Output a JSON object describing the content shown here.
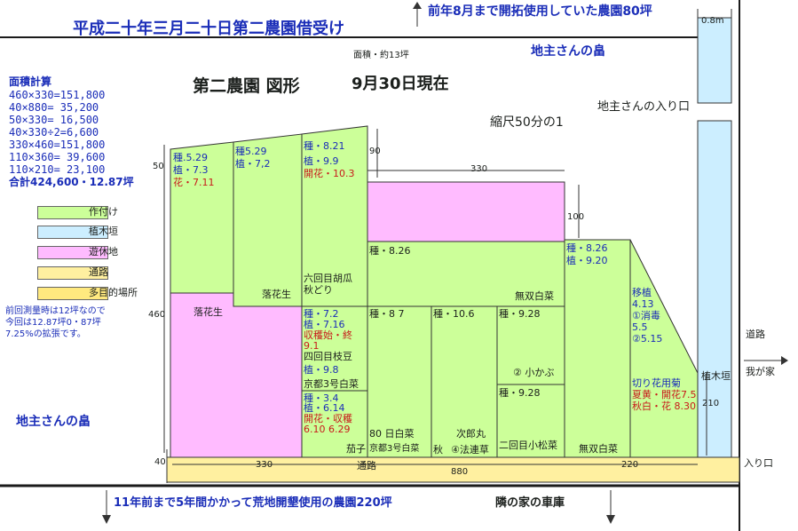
{
  "colors": {
    "planted": "#ccff99",
    "hedge": "#cceeff",
    "fallow": "#ffbbff",
    "road": "#fff0a0",
    "multi": "#ffe97f",
    "frame": "#2d2d2d"
  },
  "header": {
    "title": "平成二十年三月二十日第二農園借受け",
    "note_top": "前年8月まで開拓使用していた農園80坪",
    "width_08": "0.8m",
    "area_note": "面積・約13坪",
    "landowner_top": "地主さんの畠",
    "main_title": "第二農園  図形",
    "date": "9月30日現在",
    "entrance_top": "地主さんの入り口",
    "scale": "縮尺50分の1"
  },
  "area_calc": {
    "title": "面積計算",
    "lines": [
      "460×330=151,800",
      "40×880=  35,200",
      "50×330=  16,500",
      "40×330÷2=6,600",
      "330×460=151,800",
      "110×360= 39,600",
      "110×210= 23,100",
      "合計424,600・12.87坪"
    ]
  },
  "legend": {
    "items": [
      "作付け",
      "植木垣",
      "遊休地",
      "通路",
      "多目的場所"
    ]
  },
  "prev_note": [
    "前回測量時は12坪なので",
    "今回は12.87坪0・87坪",
    "7.25%の拡張です。"
  ],
  "landowner_left": "地主さんの畠",
  "dims": {
    "d50": "50",
    "d460": "460",
    "d40": "40",
    "d90": "90",
    "d330_top": "330",
    "d100": "100",
    "d210": "210",
    "d330_bottom": "330",
    "d880": "880",
    "d220": "220"
  },
  "plots": {
    "p1": [
      "種.5.29",
      "植・7.3",
      "花・7.11"
    ],
    "p1_name": "落花生",
    "p2": [
      "種5.29",
      "植・7,2"
    ],
    "p2_name": "落花生",
    "p3": [
      "種・8.21",
      "植・9.9",
      "開花・10.3"
    ],
    "p3_name": [
      "六回目胡瓜",
      "秋どり"
    ],
    "p4_top": "種・8.26",
    "p4_name": "無双白菜",
    "p5": [
      "種・8.26",
      "植・9.20"
    ],
    "p5_name": "無双白菜",
    "p6": [
      "種・7.2",
      "植・7.16",
      "収穫始・終",
      "9.1",
      "四回目枝豆"
    ],
    "p6b": "植・9.8",
    "p6_name": "京都3号白菜",
    "p7": [
      "種・3.4",
      "植・6.14",
      "開花・収穫",
      "6.10    6.29"
    ],
    "p7_name": "茄子",
    "p8": "種・8 7",
    "p8_name": "80 日白菜",
    "p8_name2": "京都3号白菜",
    "p9": "種・10.6",
    "p9_name": "次郎丸",
    "p9_name2": "④法連草",
    "p9_prefix": "秋",
    "p10": "種・9.28",
    "p10_name": "② 小かぶ",
    "p11": "種・9.28",
    "p11_name": "二回目小松菜",
    "p12": [
      "移植",
      "4.13",
      "①消毒",
      "5.5",
      "②5.15"
    ],
    "p12_b": [
      "切り花用菊",
      "夏黄・開花7.5",
      "秋白・花 8.30"
    ]
  },
  "right": {
    "hedge": "植木垣",
    "road": "道路",
    "to_home": "我が家",
    "entrance": "入り口"
  },
  "bottom": {
    "path": "通路",
    "note": "11年前まで5年間かかって荒地開墾使用の農園220坪",
    "neighbor": "隣の家の車庫"
  }
}
